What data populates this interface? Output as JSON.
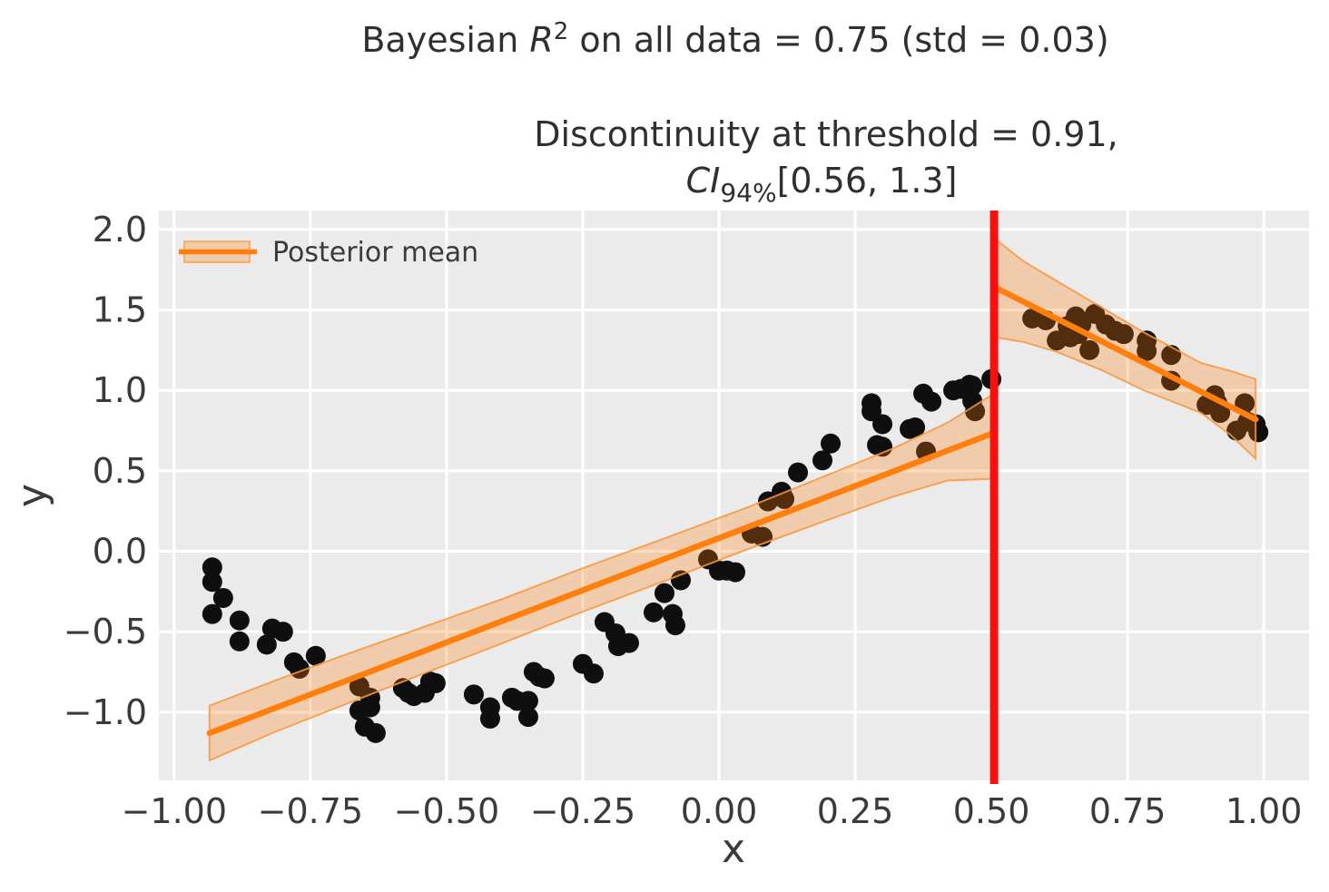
{
  "figure": {
    "title": {
      "text_before": "Bayesian ",
      "math_var": "R",
      "superscript": "2",
      "text_after": " on all data = 0.75 (std = 0.03)"
    },
    "subtitle": {
      "line1": "Discontinuity at threshold = 0.91,",
      "ci_label": "CI",
      "ci_sub": "94%",
      "ci_range": "[0.56, 1.3]"
    }
  },
  "legend": {
    "label": "Posterior mean",
    "position": "upper left"
  },
  "axes": {
    "xlabel": "x",
    "ylabel": "y"
  },
  "colors": {
    "figure_bg": "#ffffff",
    "axes_bg": "#ebebeb",
    "grid": "#ffffff",
    "scatter": "#0f0f0f",
    "mean_line": "#ff7f0e",
    "ci_band_fill": "rgba(255,127,14,0.28)",
    "ci_band_edge": "rgba(247,152,64,0.85)",
    "threshold": "#fa0f0f",
    "tick_text": "#3a3a3a"
  },
  "chart_data": {
    "type": "scatter",
    "title": "Bayesian R^2 on all data = 0.75 (std = 0.03)",
    "subtitle": "Discontinuity at threshold = 0.91, CI_94% [0.56, 1.3]",
    "xlabel": "x",
    "ylabel": "y",
    "xlim": [
      -1.028,
      1.083
    ],
    "ylim": [
      -1.424,
      2.118
    ],
    "grid": true,
    "legend_position": "upper left",
    "x_ticks": [
      {
        "v": -1.0,
        "label": "−1.00"
      },
      {
        "v": -0.75,
        "label": "−0.75"
      },
      {
        "v": -0.5,
        "label": "−0.50"
      },
      {
        "v": -0.25,
        "label": "−0.25"
      },
      {
        "v": 0.0,
        "label": "0.00"
      },
      {
        "v": 0.25,
        "label": "0.25"
      },
      {
        "v": 0.5,
        "label": "0.50"
      },
      {
        "v": 0.75,
        "label": "0.75"
      },
      {
        "v": 1.0,
        "label": "1.00"
      }
    ],
    "y_ticks": [
      {
        "v": 2.0,
        "label": "2.0"
      },
      {
        "v": 1.5,
        "label": "1.5"
      },
      {
        "v": 1.0,
        "label": "1.0"
      },
      {
        "v": 0.5,
        "label": "0.5"
      },
      {
        "v": 0.0,
        "label": "0.0"
      },
      {
        "v": -0.5,
        "label": "−0.5"
      },
      {
        "v": -1.0,
        "label": "−1.0"
      }
    ],
    "threshold": {
      "x": 0.5
    },
    "scatter_points": [
      [
        -0.93,
        -0.1
      ],
      [
        -0.93,
        -0.19
      ],
      [
        -0.91,
        -0.29
      ],
      [
        -0.93,
        -0.39
      ],
      [
        -0.88,
        -0.43
      ],
      [
        -0.88,
        -0.56
      ],
      [
        -0.82,
        -0.48
      ],
      [
        -0.8,
        -0.5
      ],
      [
        -0.83,
        -0.58
      ],
      [
        -0.78,
        -0.69
      ],
      [
        -0.77,
        -0.73
      ],
      [
        -0.74,
        -0.65
      ],
      [
        -0.66,
        -0.84
      ],
      [
        -0.64,
        -0.91
      ],
      [
        -0.66,
        -0.99
      ],
      [
        -0.64,
        -0.97
      ],
      [
        -0.65,
        -1.09
      ],
      [
        -0.63,
        -1.13
      ],
      [
        -0.58,
        -0.85
      ],
      [
        -0.57,
        -0.88
      ],
      [
        -0.56,
        -0.9
      ],
      [
        -0.54,
        -0.88
      ],
      [
        -0.53,
        -0.81
      ],
      [
        -0.52,
        -0.82
      ],
      [
        -0.45,
        -0.89
      ],
      [
        -0.42,
        -0.97
      ],
      [
        -0.42,
        -1.04
      ],
      [
        -0.38,
        -0.91
      ],
      [
        -0.37,
        -0.93
      ],
      [
        -0.35,
        -0.93
      ],
      [
        -0.35,
        -1.03
      ],
      [
        -0.34,
        -0.75
      ],
      [
        -0.33,
        -0.78
      ],
      [
        -0.32,
        -0.79
      ],
      [
        -0.25,
        -0.7
      ],
      [
        -0.23,
        -0.76
      ],
      [
        -0.21,
        -0.44
      ],
      [
        -0.19,
        -0.51
      ],
      [
        -0.185,
        -0.59
      ],
      [
        -0.165,
        -0.57
      ],
      [
        -0.12,
        -0.38
      ],
      [
        -0.1,
        -0.26
      ],
      [
        -0.085,
        -0.39
      ],
      [
        -0.08,
        -0.46
      ],
      [
        -0.07,
        -0.18
      ],
      [
        -0.02,
        -0.05
      ],
      [
        0.0,
        -0.12
      ],
      [
        0.015,
        -0.12
      ],
      [
        0.03,
        -0.13
      ],
      [
        0.06,
        0.11
      ],
      [
        0.08,
        0.09
      ],
      [
        0.09,
        0.31
      ],
      [
        0.115,
        0.37
      ],
      [
        0.12,
        0.325
      ],
      [
        0.145,
        0.49
      ],
      [
        0.19,
        0.565
      ],
      [
        0.205,
        0.67
      ],
      [
        0.28,
        0.92
      ],
      [
        0.28,
        0.87
      ],
      [
        0.29,
        0.66
      ],
      [
        0.3,
        0.79
      ],
      [
        0.3,
        0.65
      ],
      [
        0.35,
        0.76
      ],
      [
        0.36,
        0.77
      ],
      [
        0.375,
        0.98
      ],
      [
        0.38,
        0.62
      ],
      [
        0.39,
        0.93
      ],
      [
        0.43,
        1.0
      ],
      [
        0.445,
        1.01
      ],
      [
        0.46,
        1.035
      ],
      [
        0.465,
        1.03
      ],
      [
        0.465,
        0.935
      ],
      [
        0.47,
        0.87
      ],
      [
        0.5,
        1.07
      ],
      [
        0.575,
        1.447
      ],
      [
        0.6,
        1.436
      ],
      [
        0.62,
        1.31
      ],
      [
        0.64,
        1.4
      ],
      [
        0.645,
        1.33
      ],
      [
        0.655,
        1.46
      ],
      [
        0.66,
        1.35
      ],
      [
        0.665,
        1.41
      ],
      [
        0.68,
        1.25
      ],
      [
        0.69,
        1.475
      ],
      [
        0.71,
        1.41
      ],
      [
        0.727,
        1.37
      ],
      [
        0.743,
        1.35
      ],
      [
        0.785,
        1.31
      ],
      [
        0.785,
        1.245
      ],
      [
        0.83,
        1.22
      ],
      [
        0.83,
        1.06
      ],
      [
        0.895,
        0.91
      ],
      [
        0.91,
        0.97
      ],
      [
        0.915,
        0.92
      ],
      [
        0.92,
        0.86
      ],
      [
        0.95,
        0.75
      ],
      [
        0.965,
        0.92
      ],
      [
        0.97,
        0.805
      ],
      [
        0.985,
        0.79
      ],
      [
        0.99,
        0.74
      ]
    ],
    "posterior_mean": {
      "left": [
        [
          -0.935,
          -1.13
        ],
        [
          0.5,
          0.73
        ]
      ],
      "right": [
        [
          0.507,
          1.64
        ],
        [
          0.985,
          0.82
        ]
      ]
    },
    "ci_band": {
      "left": {
        "x": [
          -0.935,
          -0.82,
          -0.7,
          -0.55,
          -0.4,
          -0.25,
          -0.1,
          0.05,
          0.2,
          0.32,
          0.42,
          0.5
        ],
        "upper": [
          -0.96,
          -0.81,
          -0.66,
          -0.48,
          -0.3,
          -0.105,
          0.08,
          0.27,
          0.475,
          0.64,
          0.8,
          0.97
        ],
        "lower": [
          -1.3,
          -1.13,
          -0.97,
          -0.77,
          -0.575,
          -0.375,
          -0.185,
          0.01,
          0.195,
          0.34,
          0.44,
          0.45
        ]
      },
      "right": {
        "x": [
          0.507,
          0.56,
          0.62,
          0.7,
          0.78,
          0.885,
          0.94,
          0.985
        ],
        "upper": [
          1.94,
          1.8,
          1.68,
          1.52,
          1.36,
          1.17,
          1.12,
          1.07
        ],
        "lower": [
          1.33,
          1.3,
          1.24,
          1.13,
          1.0,
          0.86,
          0.72,
          0.575
        ]
      }
    }
  }
}
